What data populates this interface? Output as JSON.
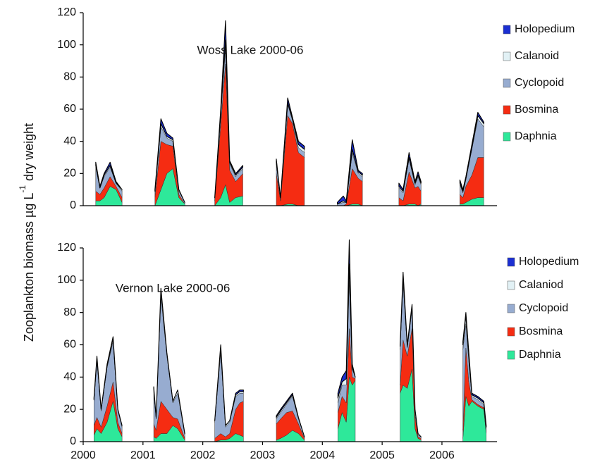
{
  "y_axis_title": {
    "main": "Zooplankton biomass µg L",
    "sup": "-1",
    "end": "dry weight"
  },
  "chart_data": [
    {
      "type": "stacked-area",
      "title": "Woss Lake  2000-06",
      "x": [
        2000.21,
        2000.28,
        2000.35,
        2000.45,
        2000.55,
        2000.65,
        null,
        2001.2,
        2001.3,
        2001.4,
        2001.5,
        2001.6,
        2001.7,
        null,
        2002.2,
        2002.3,
        2002.38,
        2002.45,
        2002.55,
        2002.67,
        null,
        2003.23,
        2003.3,
        2003.42,
        2003.5,
        2003.6,
        2003.7,
        null,
        2004.25,
        2004.35,
        2004.4,
        2004.5,
        2004.6,
        2004.67,
        null,
        2005.28,
        2005.35,
        2005.45,
        2005.55,
        2005.6,
        2005.65,
        null,
        2006.3,
        2006.35,
        2006.4,
        2006.5,
        2006.6,
        2006.7
      ],
      "series": [
        {
          "name": "Daphnia",
          "color": "#2ee89a",
          "values": [
            3,
            3,
            5,
            12,
            10,
            2,
            null,
            0,
            10,
            20,
            23,
            5,
            1,
            null,
            0,
            5,
            13,
            2,
            5,
            6,
            null,
            0,
            0,
            1,
            1,
            0,
            0,
            null,
            0,
            0,
            0,
            1,
            1,
            0,
            null,
            0,
            0,
            1,
            1,
            0,
            1,
            null,
            1,
            1,
            2,
            4,
            5,
            5
          ]
        },
        {
          "name": "Bosmina",
          "color": "#f52c12",
          "values": [
            6,
            4,
            6,
            6,
            2,
            3,
            null,
            5,
            30,
            18,
            14,
            2,
            0,
            null,
            3,
            45,
            75,
            20,
            10,
            14,
            null,
            20,
            3,
            55,
            50,
            33,
            30,
            null,
            0,
            0,
            1,
            22,
            16,
            15,
            null,
            5,
            3,
            20,
            10,
            12,
            8,
            null,
            6,
            4,
            10,
            15,
            25,
            25
          ]
        },
        {
          "name": "Cyclopoid",
          "color": "#97acd0",
          "values": [
            15,
            4,
            7,
            6,
            2,
            4,
            null,
            3,
            9,
            4,
            3,
            2,
            1,
            null,
            1,
            6,
            10,
            4,
            3,
            3,
            null,
            6,
            1,
            7,
            2,
            3,
            3,
            null,
            1,
            2,
            1,
            10,
            3,
            3,
            null,
            6,
            5,
            8,
            2,
            6,
            4,
            null,
            6,
            3,
            4,
            16,
            24,
            19
          ]
        },
        {
          "name": "Calanoid",
          "color": "#e2f1f5",
          "values": [
            1,
            0,
            1,
            1,
            0,
            1,
            null,
            1,
            2,
            1,
            1,
            1,
            0,
            null,
            1,
            1,
            5,
            1,
            1,
            1,
            null,
            1,
            1,
            1,
            1,
            2,
            2,
            null,
            0,
            1,
            0,
            2,
            1,
            1,
            null,
            1,
            1,
            1,
            1,
            1,
            1,
            null,
            1,
            1,
            1,
            1,
            2,
            2
          ]
        },
        {
          "name": "Holopedium",
          "color": "#1b2fd2",
          "values": [
            2,
            1,
            1,
            2,
            1,
            0,
            null,
            1,
            3,
            2,
            1,
            0,
            0,
            null,
            0,
            3,
            12,
            1,
            1,
            1,
            null,
            2,
            0,
            3,
            1,
            2,
            2,
            null,
            1,
            3,
            1,
            6,
            1,
            1,
            null,
            2,
            1,
            3,
            1,
            2,
            1,
            null,
            2,
            1,
            1,
            2,
            2,
            1
          ]
        }
      ],
      "xlim": [
        2000,
        2006.92
      ],
      "ylim": [
        0,
        120
      ],
      "yticks": [
        0,
        20,
        40,
        60,
        80,
        100,
        120
      ],
      "grid": false,
      "legend": "right"
    },
    {
      "type": "stacked-area",
      "title": "Vernon Lake 2000-06",
      "x": [
        2000.18,
        2000.23,
        2000.3,
        2000.4,
        2000.5,
        2000.58,
        2000.65,
        null,
        2001.18,
        2001.22,
        2001.3,
        2001.4,
        2001.5,
        2001.58,
        2001.7,
        null,
        2002.2,
        2002.3,
        2002.38,
        2002.45,
        2002.55,
        2002.62,
        2002.68,
        null,
        2003.23,
        2003.3,
        2003.4,
        2003.5,
        2003.6,
        2003.7,
        null,
        2004.26,
        2004.33,
        2004.4,
        2004.45,
        2004.5,
        2004.55,
        null,
        2005.3,
        2005.35,
        2005.42,
        2005.5,
        2005.55,
        2005.6,
        2005.65,
        null,
        2006.35,
        2006.4,
        2006.45,
        2006.5,
        2006.6,
        2006.7,
        2006.74
      ],
      "series": [
        {
          "name": "Daphnia",
          "color": "#2ee89a",
          "values": [
            4,
            8,
            5,
            12,
            25,
            8,
            3,
            null,
            3,
            2,
            5,
            5,
            10,
            8,
            1,
            null,
            0,
            1,
            1,
            2,
            5,
            4,
            3,
            null,
            1,
            2,
            4,
            7,
            5,
            1,
            null,
            8,
            18,
            12,
            40,
            35,
            38,
            null,
            30,
            35,
            33,
            45,
            8,
            2,
            1,
            null,
            2,
            28,
            22,
            25,
            22,
            20,
            5
          ]
        },
        {
          "name": "Bosmina",
          "color": "#f52c12",
          "values": [
            6,
            7,
            4,
            10,
            12,
            4,
            2,
            null,
            8,
            5,
            20,
            15,
            5,
            6,
            1,
            null,
            2,
            4,
            2,
            3,
            15,
            20,
            22,
            null,
            10,
            12,
            14,
            12,
            6,
            1,
            null,
            10,
            10,
            12,
            30,
            5,
            1,
            null,
            5,
            28,
            20,
            25,
            8,
            1,
            1,
            null,
            5,
            30,
            15,
            1,
            1,
            1,
            1
          ]
        },
        {
          "name": "Cyclopoid",
          "color": "#97acd0",
          "values": [
            15,
            35,
            10,
            24,
            25,
            7,
            4,
            null,
            20,
            7,
            65,
            33,
            9,
            16,
            2,
            null,
            10,
            50,
            6,
            7,
            8,
            6,
            5,
            null,
            3,
            4,
            5,
            9,
            3,
            1,
            null,
            6,
            7,
            11,
            30,
            5,
            1,
            null,
            22,
            35,
            5,
            12,
            3,
            1,
            1,
            null,
            50,
            15,
            12,
            2,
            3,
            2,
            2
          ]
        },
        {
          "name": "Calaniod",
          "color": "#e2f1f5",
          "values": [
            1,
            2,
            1,
            1,
            2,
            1,
            1,
            null,
            2,
            1,
            4,
            2,
            1,
            2,
            1,
            null,
            1,
            4,
            1,
            1,
            1,
            1,
            1,
            null,
            1,
            1,
            1,
            1,
            1,
            0,
            null,
            3,
            2,
            4,
            10,
            1,
            0,
            null,
            2,
            5,
            1,
            2,
            1,
            1,
            0,
            null,
            3,
            5,
            4,
            1,
            1,
            1,
            1
          ]
        },
        {
          "name": "Holopedium",
          "color": "#1b2fd2",
          "values": [
            1,
            1,
            0,
            1,
            1,
            0,
            0,
            null,
            1,
            0,
            1,
            0,
            0,
            0,
            0,
            null,
            0,
            1,
            0,
            0,
            1,
            1,
            1,
            null,
            1,
            1,
            1,
            1,
            0,
            0,
            null,
            3,
            3,
            5,
            15,
            2,
            0,
            null,
            1,
            2,
            1,
            1,
            0,
            0,
            0,
            null,
            2,
            2,
            2,
            1,
            1,
            1,
            1
          ]
        }
      ],
      "xlim": [
        2000,
        2006.92
      ],
      "xticks": [
        2000,
        2001,
        2002,
        2003,
        2004,
        2005,
        2006
      ],
      "ylim": [
        0,
        120
      ],
      "yticks": [
        0,
        20,
        40,
        60,
        80,
        100,
        120
      ],
      "grid": false,
      "legend": "right"
    }
  ]
}
